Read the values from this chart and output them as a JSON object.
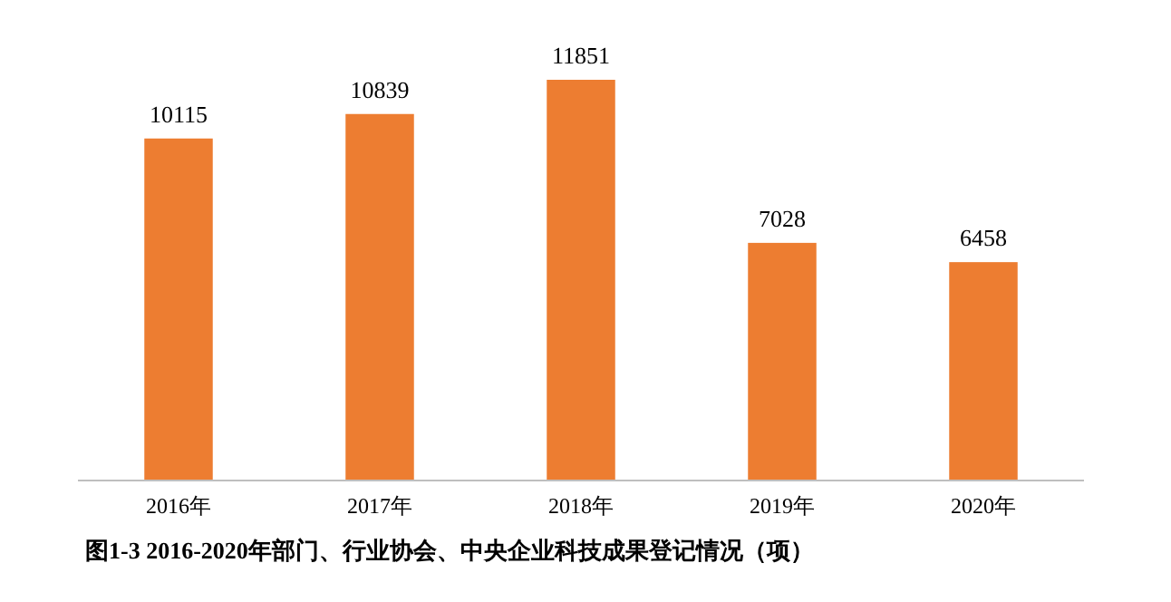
{
  "chart_data": {
    "type": "bar",
    "title": "图1-3  2016-2020年部门、行业协会、中央企业科技成果登记情况（项）",
    "categories": [
      "2016年",
      "2017年",
      "2018年",
      "2019年",
      "2020年"
    ],
    "values": [
      10115,
      10839,
      11851,
      7028,
      6458
    ],
    "color": "#ed7d31",
    "data_labels": true
  }
}
